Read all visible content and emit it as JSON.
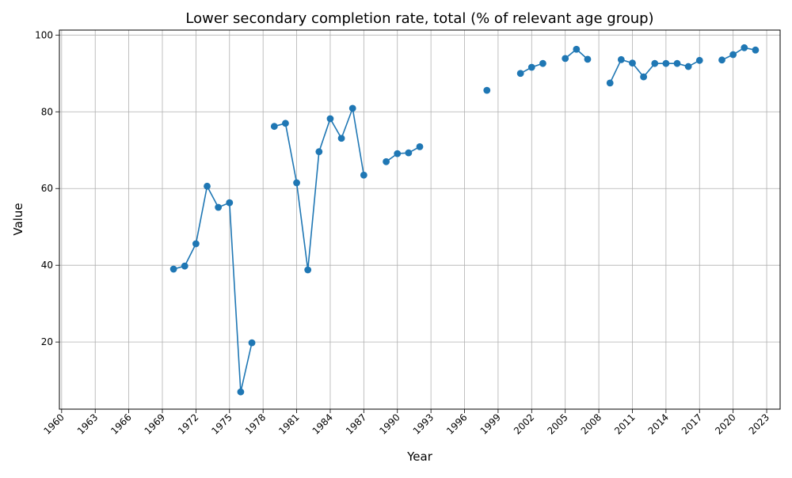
{
  "chart_data": {
    "type": "line",
    "title": "Lower secondary completion rate, total (% of relevant age group)",
    "xlabel": "Year",
    "ylabel": "Value",
    "xlim": [
      1959.8,
      2024.2
    ],
    "ylim": [
      2.5,
      101.3
    ],
    "xticks": [
      1960,
      1963,
      1966,
      1969,
      1972,
      1975,
      1978,
      1981,
      1984,
      1987,
      1990,
      1993,
      1996,
      1999,
      2002,
      2005,
      2008,
      2011,
      2014,
      2017,
      2020,
      2023
    ],
    "yticks": [
      20,
      40,
      60,
      80,
      100
    ],
    "grid": true,
    "series": [
      {
        "color": "#1f77b4",
        "marker": "circle",
        "points": [
          [
            1970,
            39.0
          ],
          [
            1971,
            39.8
          ],
          [
            1972,
            45.6
          ],
          [
            1973,
            60.6
          ],
          [
            1974,
            55.1
          ],
          [
            1975,
            56.3
          ],
          [
            1976,
            7.0
          ],
          [
            1977,
            19.8
          ],
          [
            1978,
            null
          ],
          [
            1979,
            76.2
          ],
          [
            1980,
            77.0
          ],
          [
            1981,
            61.5
          ],
          [
            1982,
            38.8
          ],
          [
            1983,
            69.6
          ],
          [
            1984,
            78.2
          ],
          [
            1985,
            73.1
          ],
          [
            1986,
            80.9
          ],
          [
            1987,
            63.5
          ],
          [
            1988,
            null
          ],
          [
            1989,
            67.0
          ],
          [
            1990,
            69.1
          ],
          [
            1991,
            69.3
          ],
          [
            1992,
            70.9
          ],
          [
            1993,
            null
          ],
          [
            1998,
            85.6
          ],
          [
            1999,
            null
          ],
          [
            2001,
            90.0
          ],
          [
            2002,
            91.6
          ],
          [
            2003,
            92.6
          ],
          [
            2004,
            null
          ],
          [
            2005,
            93.9
          ],
          [
            2006,
            96.3
          ],
          [
            2007,
            93.7
          ],
          [
            2008,
            null
          ],
          [
            2009,
            87.5
          ],
          [
            2010,
            93.6
          ],
          [
            2011,
            92.7
          ],
          [
            2012,
            89.1
          ],
          [
            2013,
            92.6
          ],
          [
            2014,
            92.6
          ],
          [
            2015,
            92.6
          ],
          [
            2016,
            91.8
          ],
          [
            2017,
            93.4
          ],
          [
            2018,
            null
          ],
          [
            2019,
            93.5
          ],
          [
            2020,
            94.9
          ],
          [
            2021,
            96.7
          ],
          [
            2022,
            96.1
          ]
        ]
      }
    ]
  }
}
